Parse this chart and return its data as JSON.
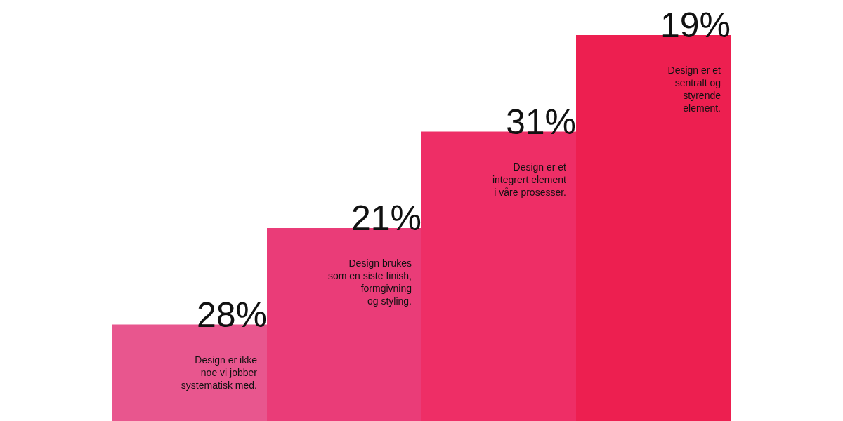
{
  "chart_data": {
    "type": "other",
    "categories": [
      "Design er ikke\nnoe vi jobber\nsystematisk med.",
      "Design brukes\nsom en siste finish,\nformgivning\nog styling.",
      "Design er et\nintegrert element\ni våre prosesser.",
      "Design er et\nsentralt og\nstyrende\nelement."
    ],
    "values": [
      28,
      21,
      31,
      19
    ],
    "colors": [
      "#e8568e",
      "#ea3c78",
      "#ee2e66",
      "#ed1f50"
    ],
    "value_labels": [
      "28%",
      "21%",
      "31%",
      "19%"
    ],
    "data_labels": true
  }
}
